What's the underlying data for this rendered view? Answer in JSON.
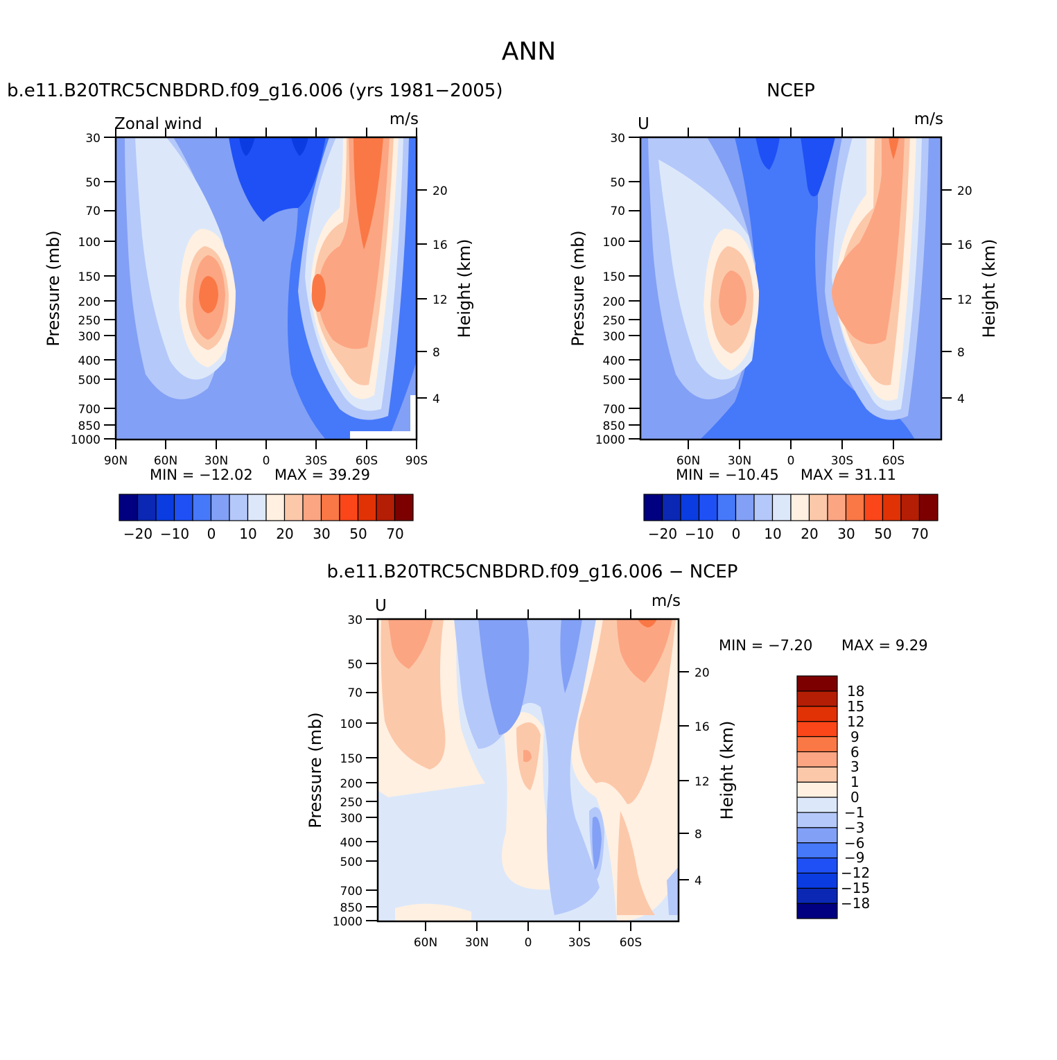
{
  "figure": {
    "title": "ANN"
  },
  "colors": {
    "wind_scale": [
      "#000080",
      "#0a28b4",
      "#0a3ce1",
      "#1e50f5",
      "#4678fa",
      "#82a0f5",
      "#b4c8fa",
      "#dce8fa",
      "#fff0e1",
      "#fcc8aa",
      "#fca582",
      "#fa7846",
      "#fa4619",
      "#e13205",
      "#b41e05",
      "#7d0000"
    ],
    "diff_scale": [
      "#000080",
      "#0a28b4",
      "#0a3ce1",
      "#1e50f5",
      "#4678fa",
      "#82a0f5",
      "#b4c8fa",
      "#dce8fa",
      "#fff0e1",
      "#fcc8aa",
      "#fca582",
      "#fa7846",
      "#fa4619",
      "#e13205",
      "#b41e05",
      "#7d0000"
    ]
  },
  "chart_data": [
    {
      "type": "heatmap",
      "title": "b.e11.B20TRC5CNBDRD.f09_g16.006 (yrs 1981-2005)",
      "left_label": "Zonal wind",
      "units": "m/s",
      "ylabel": "Pressure (mb)",
      "ylabel_right": "Height (km)",
      "x_ticks": [
        "90N",
        "60N",
        "30N",
        "0",
        "30S",
        "60S",
        "90S"
      ],
      "y_ticks": [
        "30",
        "50",
        "70",
        "100",
        "150",
        "200",
        "250",
        "300",
        "400",
        "500",
        "700",
        "850",
        "1000"
      ],
      "y_right_ticks": [
        "20",
        "16",
        "12",
        "8",
        "4"
      ],
      "min_label": "MIN = -12.02",
      "max_label": "MAX = 39.29",
      "min": -12.02,
      "max": 39.29,
      "colorbar_labels": [
        "-20",
        "-10",
        "0",
        "10",
        "20",
        "30",
        "50",
        "70"
      ]
    },
    {
      "type": "heatmap",
      "title": "NCEP",
      "left_label": "U",
      "units": "m/s",
      "ylabel": "Pressure (mb)",
      "ylabel_right": "Height (km)",
      "x_ticks": [
        "60N",
        "30N",
        "0",
        "30S",
        "60S"
      ],
      "y_ticks": [
        "30",
        "50",
        "70",
        "100",
        "150",
        "200",
        "250",
        "300",
        "400",
        "500",
        "700",
        "850",
        "1000"
      ],
      "y_right_ticks": [
        "20",
        "16",
        "12",
        "8",
        "4"
      ],
      "min_label": "MIN = -10.45",
      "max_label": "MAX = 31.11",
      "min": -10.45,
      "max": 31.11,
      "colorbar_labels": [
        "-20",
        "-10",
        "0",
        "10",
        "20",
        "30",
        "50",
        "70"
      ]
    },
    {
      "type": "heatmap",
      "title": "b.e11.B20TRC5CNBDRD.f09_g16.006 - NCEP",
      "left_label": "U",
      "units": "m/s",
      "ylabel": "Pressure (mb)",
      "ylabel_right": "Height (km)",
      "x_ticks": [
        "60N",
        "30N",
        "0",
        "30S",
        "60S"
      ],
      "y_ticks": [
        "30",
        "50",
        "70",
        "100",
        "150",
        "200",
        "250",
        "300",
        "400",
        "500",
        "700",
        "850",
        "1000"
      ],
      "y_right_ticks": [
        "20",
        "16",
        "12",
        "8",
        "4"
      ],
      "min_label": "MIN = -7.20",
      "max_label": "MAX = 9.29",
      "min": -7.2,
      "max": 9.29,
      "colorbar_labels": [
        "18",
        "15",
        "12",
        "9",
        "6",
        "3",
        "1",
        "0",
        "-1",
        "-3",
        "-6",
        "-9",
        "-12",
        "-15",
        "-18"
      ]
    }
  ]
}
